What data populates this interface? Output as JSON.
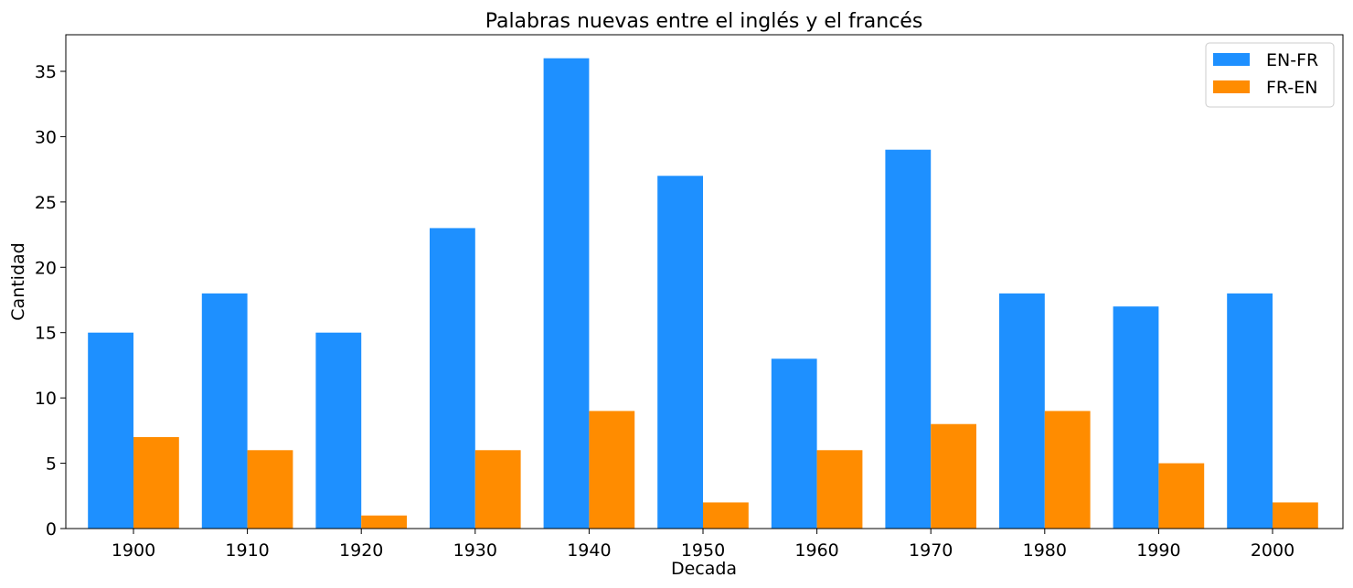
{
  "chart_data": {
    "type": "bar",
    "title": "Palabras nuevas entre el inglés y el francés",
    "xlabel": "Decada",
    "ylabel": "Cantidad",
    "categories": [
      "1900",
      "1910",
      "1920",
      "1930",
      "1940",
      "1950",
      "1960",
      "1970",
      "1980",
      "1990",
      "2000"
    ],
    "series": [
      {
        "name": "EN-FR",
        "color": "#1E90FF",
        "values": [
          15,
          18,
          15,
          23,
          36,
          27,
          13,
          29,
          18,
          17,
          18
        ]
      },
      {
        "name": "FR-EN",
        "color": "#FF8C00",
        "values": [
          7,
          6,
          1,
          6,
          9,
          2,
          6,
          8,
          9,
          5,
          2
        ]
      }
    ],
    "yticks": [
      0,
      5,
      10,
      15,
      20,
      25,
      30,
      35
    ],
    "ylim": [
      0,
      37.8
    ],
    "grid": false,
    "legend_position": "top-right"
  }
}
